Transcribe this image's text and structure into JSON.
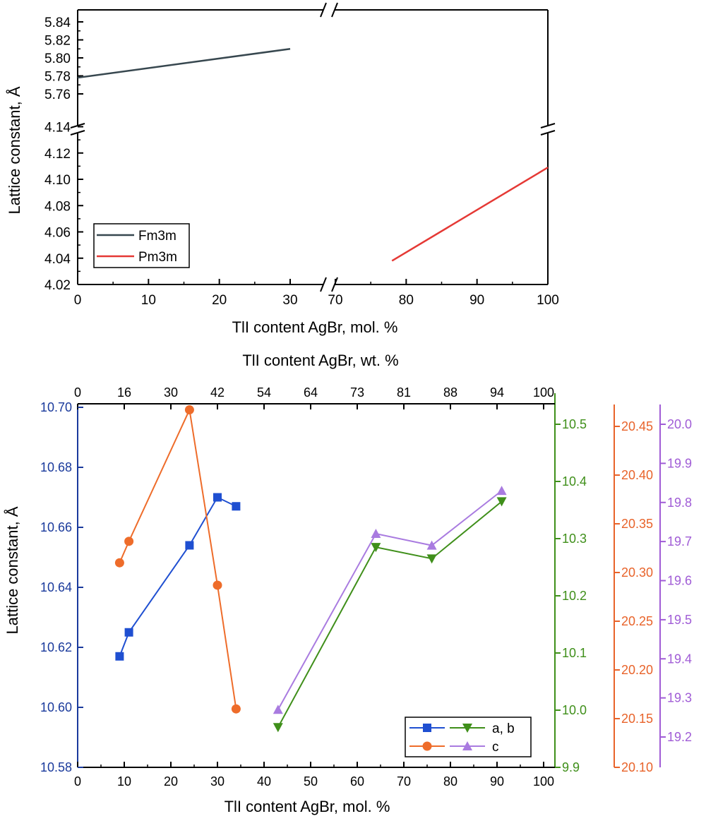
{
  "chart_data": [
    {
      "type": "line",
      "xlabel": "TlI content AgBr, mol. %",
      "ylabel": "Lattice constant, Å",
      "x_segments": [
        [
          0,
          30
        ],
        [
          70,
          100
        ]
      ],
      "y_segments": [
        [
          4.02,
          4.15
        ],
        [
          5.75,
          5.85
        ]
      ],
      "x_ticks": [
        0,
        10,
        20,
        30,
        70,
        80,
        90,
        100
      ],
      "y_ticks": [
        4.02,
        4.04,
        4.06,
        4.08,
        4.1,
        4.12,
        4.14,
        5.76,
        5.78,
        5.8,
        5.82,
        5.84
      ],
      "legend_position": "bottom-left",
      "series": [
        {
          "name": "Fm3m",
          "color": "#37474f",
          "x": [
            0,
            30
          ],
          "y": [
            5.778,
            5.81
          ]
        },
        {
          "name": "Pm3m",
          "color": "#e53935",
          "x": [
            78,
            100
          ],
          "y": [
            4.038,
            4.109
          ]
        }
      ]
    },
    {
      "type": "line",
      "xlabel": "TlI content AgBr, mol. %",
      "x2label": "TlI content AgBr, wt. %",
      "ylabel": "Lattice constant, Å",
      "xlim": [
        0,
        105
      ],
      "x_ticks": [
        0,
        10,
        20,
        30,
        40,
        50,
        60,
        70,
        80,
        90,
        100
      ],
      "x2_ticks": [
        "0",
        "16",
        "30",
        "42",
        "54",
        "64",
        "73",
        "81",
        "88",
        "94",
        "100"
      ],
      "axes": {
        "left": {
          "ylim": [
            10.58,
            10.7
          ],
          "ticks": [
            "10.58",
            "10.60",
            "10.62",
            "10.64",
            "10.66",
            "10.68",
            "10.70"
          ],
          "color": "#1a3a9c"
        },
        "green": {
          "ylim": [
            9.9,
            10.55
          ],
          "ticks": [
            "9.9",
            "10.0",
            "10.1",
            "10.2",
            "10.3",
            "10.4",
            "10.5"
          ],
          "color": "#3f8f1a"
        },
        "orange": {
          "ylim": [
            20.1,
            20.47
          ],
          "ticks": [
            "20.10",
            "20.15",
            "20.20",
            "20.25",
            "20.30",
            "20.35",
            "20.40",
            "20.45"
          ],
          "color": "#e8632a"
        },
        "purple": {
          "ylim": [
            19.15,
            20.05
          ],
          "ticks": [
            "19.2",
            "19.3",
            "19.4",
            "19.5",
            "19.6",
            "19.7",
            "19.8",
            "19.9",
            "20.0"
          ],
          "color": "#a05cd6"
        }
      },
      "legend_position": "bottom-right",
      "legend": [
        {
          "label": "a, b",
          "series": [
            "blue-a",
            "green-a"
          ]
        },
        {
          "label": "c",
          "series": [
            "orange-c",
            "purple-c"
          ]
        }
      ],
      "series": [
        {
          "id": "blue-a",
          "axis": "left",
          "marker": "square",
          "color": "#1f4fd1",
          "x": [
            9,
            11,
            24,
            30,
            34
          ],
          "y": [
            10.617,
            10.625,
            10.654,
            10.67,
            10.667
          ]
        },
        {
          "id": "orange-c",
          "axis": "orange",
          "marker": "circle",
          "color": "#ee6c2a",
          "x": [
            9,
            11,
            24,
            30,
            34
          ],
          "y": [
            20.31,
            20.332,
            20.467,
            20.287,
            20.16
          ]
        },
        {
          "id": "green-a",
          "axis": "green",
          "marker": "triangle-down",
          "color": "#3f8f1a",
          "x": [
            43,
            64,
            76,
            91
          ],
          "y": [
            9.97,
            10.285,
            10.265,
            10.365
          ]
        },
        {
          "id": "purple-c",
          "axis": "purple",
          "marker": "triangle-up",
          "color": "#a97be0",
          "x": [
            43,
            64,
            76,
            91
          ],
          "y": [
            19.27,
            19.72,
            19.69,
            19.83
          ]
        }
      ]
    }
  ]
}
